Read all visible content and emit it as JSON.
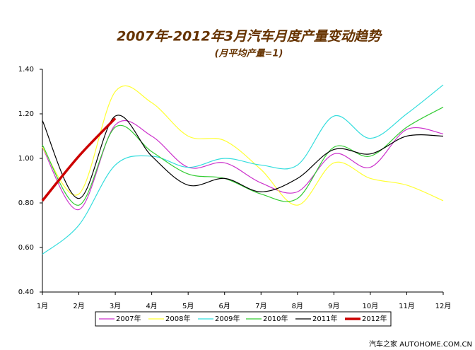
{
  "chart_data": {
    "type": "line",
    "title": "2007年-2012年3月汽车月度产量变动趋势",
    "subtitle": "(月平均产量=1)",
    "watermark": "汽车之家  AUTOHOME.COM.CN",
    "categories": [
      "1月",
      "2月",
      "3月",
      "4月",
      "5月",
      "6月",
      "7月",
      "8月",
      "9月",
      "10月",
      "11月",
      "12月"
    ],
    "series": [
      {
        "name": "2007年",
        "color": "#cc33cc",
        "values": [
          1.05,
          0.77,
          1.15,
          1.1,
          0.96,
          0.98,
          0.89,
          0.85,
          1.02,
          0.96,
          1.13,
          1.11
        ]
      },
      {
        "name": "2008年",
        "color": "#ffff33",
        "values": [
          1.05,
          0.84,
          1.3,
          1.25,
          1.1,
          1.08,
          0.95,
          0.79,
          0.98,
          0.91,
          0.88,
          0.81
        ]
      },
      {
        "name": "2009年",
        "color": "#33dddd",
        "values": [
          0.57,
          0.7,
          0.97,
          1.01,
          0.96,
          1.0,
          0.97,
          0.97,
          1.19,
          1.09,
          1.2,
          1.33
        ]
      },
      {
        "name": "2010年",
        "color": "#33cc33",
        "values": [
          1.06,
          0.79,
          1.14,
          1.03,
          0.93,
          0.91,
          0.84,
          0.82,
          1.05,
          1.01,
          1.14,
          1.23
        ]
      },
      {
        "name": "2011年",
        "color": "#000000",
        "values": [
          1.17,
          0.82,
          1.19,
          1.01,
          0.88,
          0.91,
          0.85,
          0.91,
          1.04,
          1.02,
          1.1,
          1.1
        ]
      },
      {
        "name": "2012年",
        "color": "#cc0000",
        "values": [
          0.81,
          1.01,
          1.18,
          null,
          null,
          null,
          null,
          null,
          null,
          null,
          null,
          null
        ]
      }
    ],
    "ylim": [
      0.4,
      1.4
    ],
    "yticks": [
      {
        "value": 0.4,
        "label": "0.40"
      },
      {
        "value": 0.6,
        "label": "0.60"
      },
      {
        "value": 0.8,
        "label": "0.80"
      },
      {
        "value": 1.0,
        "label": "1.00"
      },
      {
        "value": 1.2,
        "label": "1.20"
      },
      {
        "value": 1.4,
        "label": "1.40"
      }
    ]
  }
}
